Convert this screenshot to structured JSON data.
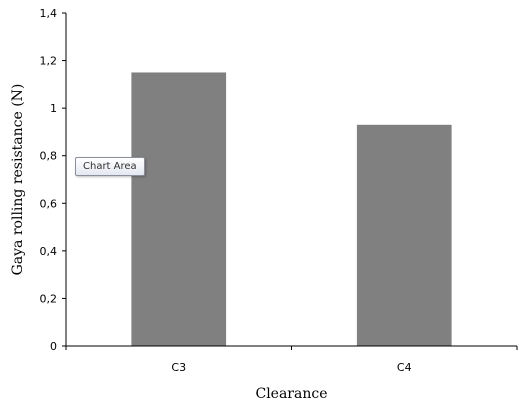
{
  "chart_data": {
    "type": "bar",
    "categories": [
      "C3",
      "C4"
    ],
    "values": [
      1.15,
      0.93
    ],
    "xlabel": "Clearance",
    "ylabel": "Gaya rolling resistance  (N)",
    "ylim": [
      0,
      1.4
    ],
    "yticks": [
      "0",
      "0,2",
      "0,4",
      "0,6",
      "0,8",
      "1",
      "1,2",
      "1,4"
    ],
    "grid": false,
    "legend": "none",
    "bar_color": "#808080"
  },
  "tooltip": {
    "text": "Chart Area"
  }
}
